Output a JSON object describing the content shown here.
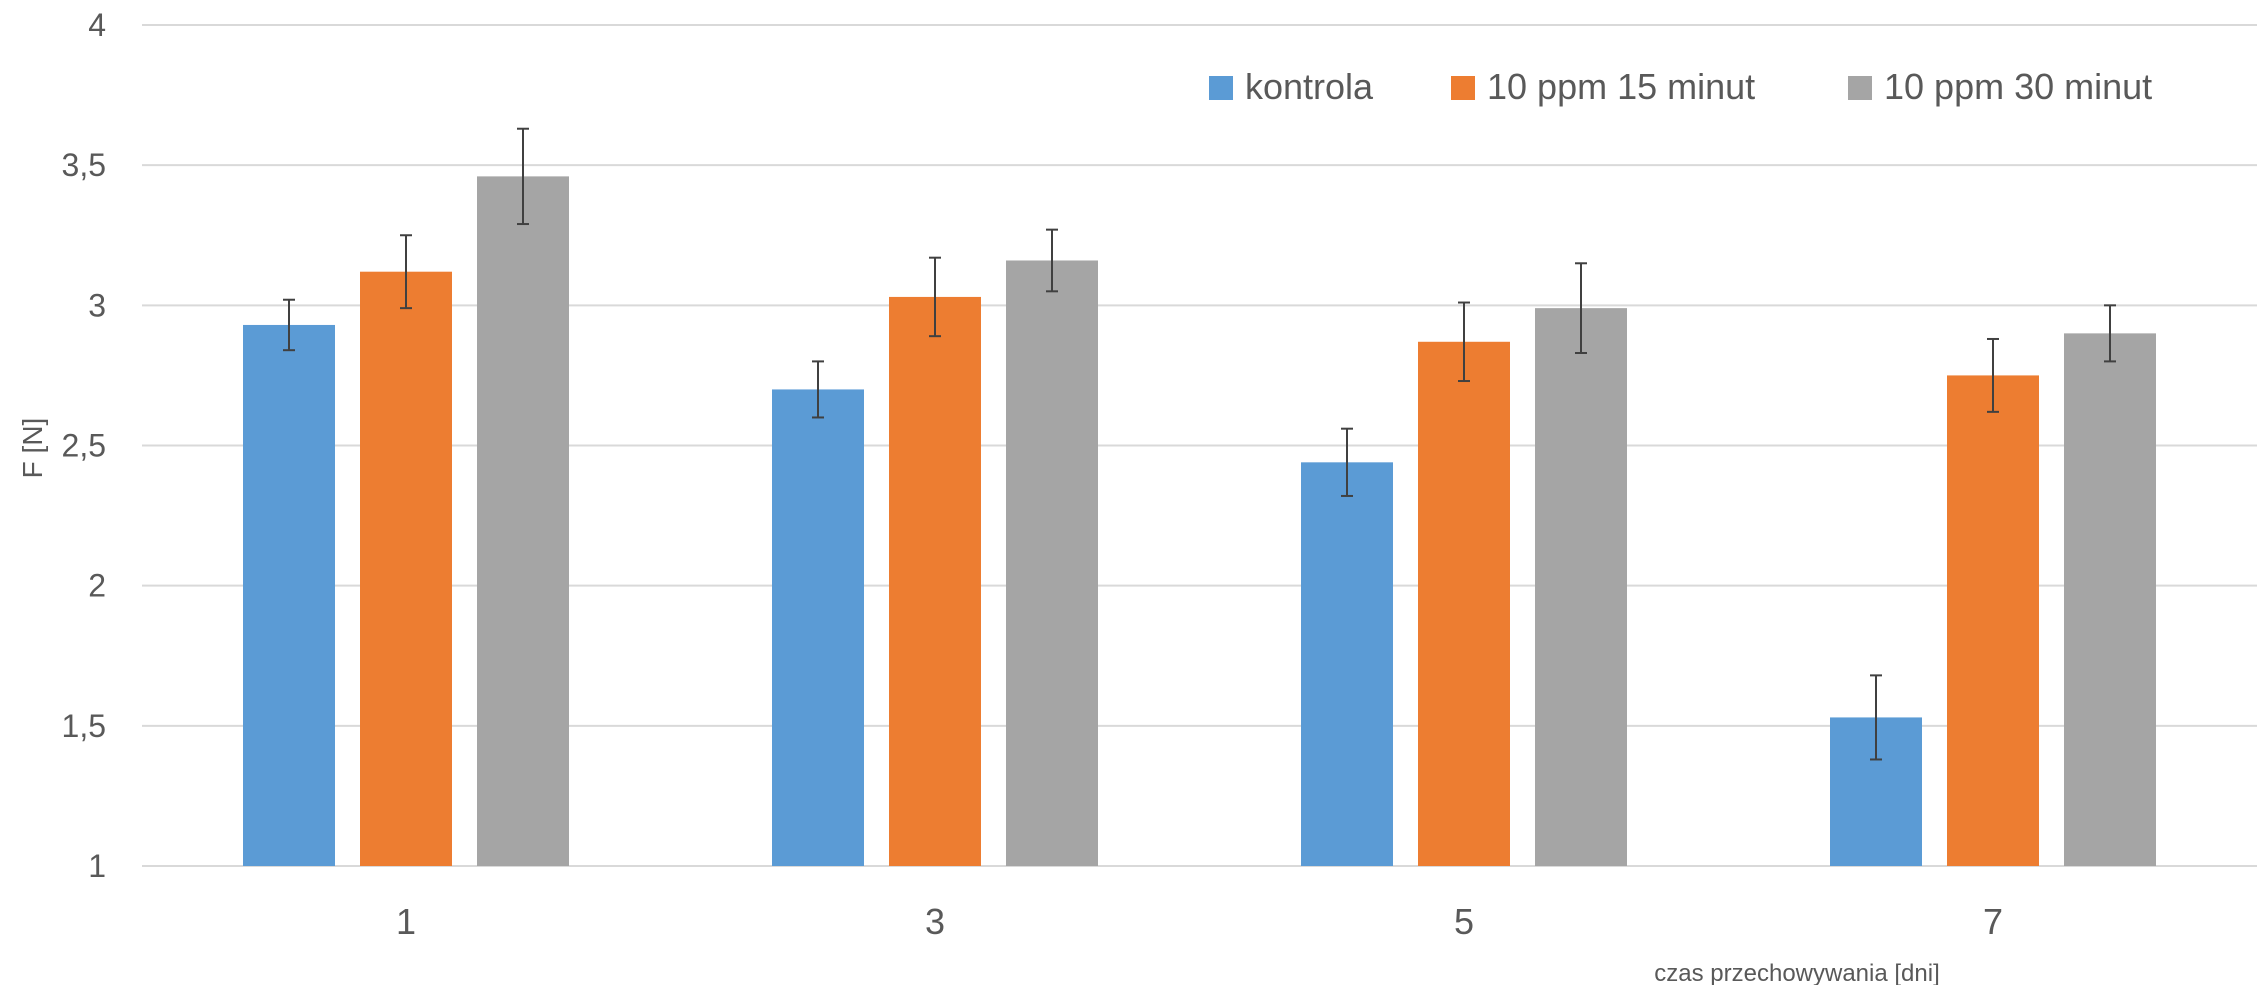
{
  "chart_data": {
    "type": "bar",
    "title": "",
    "xlabel": "czas przechowywania [dni]",
    "ylabel": "F [N]",
    "ylim": [
      1,
      4
    ],
    "yticks": [
      1,
      1.5,
      2,
      2.5,
      3,
      3.5,
      4
    ],
    "ytick_labels": [
      "1",
      "1,5",
      "2",
      "2,5",
      "3",
      "3,5",
      "4"
    ],
    "categories": [
      "1",
      "3",
      "5",
      "7"
    ],
    "series": [
      {
        "name": "kontrola",
        "color": "#5b9bd5",
        "values": [
          2.93,
          2.7,
          2.44,
          1.53
        ],
        "errors": [
          0.09,
          0.1,
          0.12,
          0.15
        ]
      },
      {
        "name": "10 ppm 15 minut",
        "color": "#ed7d31",
        "values": [
          3.12,
          3.03,
          2.87,
          2.75
        ],
        "errors": [
          0.13,
          0.14,
          0.14,
          0.13
        ]
      },
      {
        "name": "10 ppm 30 minut",
        "color": "#a5a5a5",
        "values": [
          3.46,
          3.16,
          2.99,
          2.9
        ],
        "errors": [
          0.17,
          0.11,
          0.16,
          0.1
        ]
      }
    ],
    "grid": true,
    "legend_position": "top-right"
  }
}
